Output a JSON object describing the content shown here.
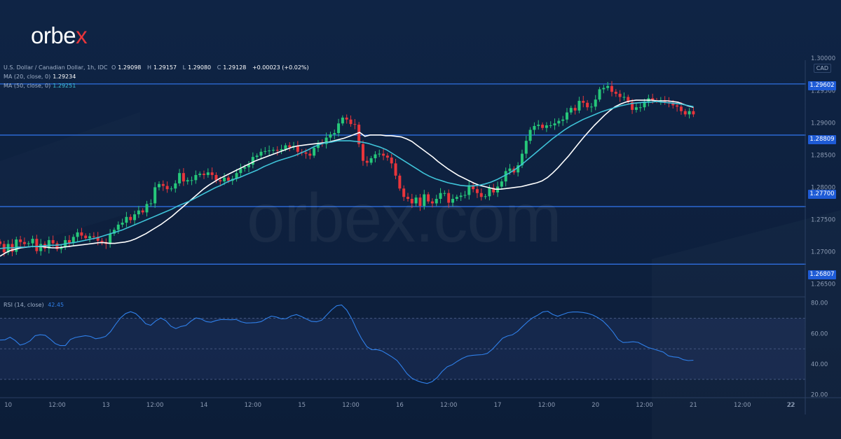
{
  "brand": {
    "logo": "orbex",
    "watermark": "orbex.com"
  },
  "legend": {
    "symbol": "U.S. Dollar / Canadian Dollar, 1h, IDC",
    "ohlc": [
      {
        "label": "O",
        "value": "1.29098"
      },
      {
        "label": "H",
        "value": "1.29157"
      },
      {
        "label": "L",
        "value": "1.29080"
      },
      {
        "label": "C",
        "value": "1.29128"
      }
    ],
    "change": "+0.00023 (+0.02%)",
    "ma20": {
      "label": "MA (20, close, 0)",
      "value": "1.29234"
    },
    "ma50": {
      "label": "MA (50, close, 0)",
      "value": "1.29251"
    },
    "rsi": {
      "label": "RSI (14, close)",
      "value": "42.45"
    }
  },
  "currency": "CAD",
  "colors": {
    "background": "#0f2240",
    "up": "#26c77a",
    "down": "#e8353b",
    "ma20": "#ffffff",
    "ma50": "#3fc3d8",
    "rsi": "#2f7fe8",
    "level_line": "#2f6fe0",
    "tag": "#1e5bd6"
  },
  "chart_data": [
    {
      "type": "candlestick",
      "title": "U.S. Dollar / Canadian Dollar, 1h, IDC",
      "ylim": [
        1.263,
        1.2997
      ],
      "y_ticks": [
        "1.30000",
        "1.29500",
        "1.29000",
        "1.28500",
        "1.28000",
        "1.27500",
        "1.27000",
        "1.26500"
      ],
      "x_ticks": [
        {
          "label": "10",
          "index": 2
        },
        {
          "label": "12:00",
          "index": 14
        },
        {
          "label": "13",
          "index": 26
        },
        {
          "label": "12:00",
          "index": 38
        },
        {
          "label": "14",
          "index": 50
        },
        {
          "label": "12:00",
          "index": 62
        },
        {
          "label": "15",
          "index": 74
        },
        {
          "label": "12:00",
          "index": 86
        },
        {
          "label": "16",
          "index": 98
        },
        {
          "label": "12:00",
          "index": 110
        },
        {
          "label": "17",
          "index": 122
        },
        {
          "label": "12:00",
          "index": 134
        },
        {
          "label": "20",
          "index": 146
        },
        {
          "label": "12:00",
          "index": 158
        },
        {
          "label": "21",
          "index": 170
        },
        {
          "label": "12:00",
          "index": 182
        },
        {
          "label": "22",
          "index": 194
        }
      ],
      "levels": [
        "1.29602",
        "1.28809",
        "1.27700",
        "1.26807"
      ],
      "series": [
        {
          "name": "MA (20, close, 0)",
          "values": [
            1.2693,
            1.2698,
            1.2702,
            1.2704,
            1.2706,
            1.2707,
            1.2708,
            1.2708,
            1.2708,
            1.2707,
            1.2706,
            1.2706,
            1.2707,
            1.2708,
            1.2709,
            1.271,
            1.2711,
            1.2712,
            1.2713,
            1.2714,
            1.2714,
            1.2713,
            1.2713,
            1.2714,
            1.2715,
            1.2717,
            1.272,
            1.2724,
            1.2728,
            1.2733,
            1.2738,
            1.2743,
            1.2749,
            1.2755,
            1.2762,
            1.2769,
            1.2776,
            1.2783,
            1.279,
            1.2797,
            1.2803,
            1.2808,
            1.2813,
            1.2817,
            1.2821,
            1.2825,
            1.2829,
            1.2833,
            1.2837,
            1.2841,
            1.2844,
            1.2847,
            1.285,
            1.2853,
            1.2856,
            1.2859,
            1.2862,
            1.2864,
            1.2865,
            1.2866,
            1.2867,
            1.2868,
            1.2869,
            1.287,
            1.2872,
            1.2874,
            1.2876,
            1.2879,
            1.2882,
            1.2885,
            1.2879,
            1.2881,
            1.2881,
            1.2881,
            1.288,
            1.288,
            1.2879,
            1.2878,
            1.2875,
            1.2871,
            1.2865,
            1.2859,
            1.2853,
            1.2847,
            1.284,
            1.2834,
            1.2828,
            1.2823,
            1.2818,
            1.2814,
            1.281,
            1.2806,
            1.2803,
            1.2801,
            1.2799,
            1.2797,
            1.2797,
            1.2798,
            1.2799,
            1.28,
            1.2801,
            1.2803,
            1.2805,
            1.2807,
            1.281,
            1.2815,
            1.2822,
            1.283,
            1.2839,
            1.2848,
            1.2858,
            1.2868,
            1.2878,
            1.2887,
            1.2896,
            1.2904,
            1.2912,
            1.2919,
            1.2925,
            1.2929,
            1.2932,
            1.2934,
            1.2935,
            1.2935,
            1.2935,
            1.2935,
            1.2934,
            1.2934,
            1.2934,
            1.2933,
            1.2932,
            1.2929,
            1.2926,
            1.2924
          ]
        },
        {
          "name": "MA (50, close, 0)",
          "values": [
            1.2705,
            1.2706,
            1.2706,
            1.2707,
            1.2707,
            1.2708,
            1.2708,
            1.2709,
            1.271,
            1.271,
            1.2711,
            1.2713,
            1.2714,
            1.2716,
            1.2718,
            1.272,
            1.2722,
            1.2725,
            1.2728,
            1.2731,
            1.2734,
            1.2738,
            1.2742,
            1.2746,
            1.275,
            1.2754,
            1.2758,
            1.2762,
            1.2766,
            1.2771,
            1.2775,
            1.2779,
            1.2784,
            1.2789,
            1.2794,
            1.2799,
            1.2803,
            1.2808,
            1.2812,
            1.2815,
            1.2819,
            1.2823,
            1.2827,
            1.2832,
            1.2836,
            1.284,
            1.2843,
            1.2846,
            1.2849,
            1.2853,
            1.2857,
            1.2862,
            1.2866,
            1.2869,
            1.287,
            1.2872,
            1.2872,
            1.2872,
            1.2871,
            1.287,
            1.2868,
            1.2865,
            1.2862,
            1.2858,
            1.2852,
            1.2846,
            1.284,
            1.2834,
            1.2828,
            1.2822,
            1.2817,
            1.2813,
            1.281,
            1.2807,
            1.2805,
            1.2803,
            1.2802,
            1.2802,
            1.2803,
            1.2805,
            1.2808,
            1.2812,
            1.2817,
            1.2822,
            1.2828,
            1.2835,
            1.2843,
            1.2851,
            1.2859,
            1.2867,
            1.2875,
            1.2882,
            1.2889,
            1.2895,
            1.29,
            1.2905,
            1.2909,
            1.2913,
            1.2917,
            1.292,
            1.2923,
            1.2926,
            1.2928,
            1.293,
            1.2931,
            1.2932,
            1.2932,
            1.2933,
            1.2932,
            1.2931,
            1.293,
            1.2929,
            1.2927,
            1.2925
          ]
        }
      ],
      "closes": [
        1.2712,
        1.2699,
        1.2712,
        1.27,
        1.2719,
        1.2715,
        1.2712,
        1.2713,
        1.272,
        1.2701,
        1.2712,
        1.2705,
        1.2718,
        1.2713,
        1.2704,
        1.2707,
        1.2718,
        1.2714,
        1.2723,
        1.273,
        1.2725,
        1.2721,
        1.2724,
        1.2723,
        1.2717,
        1.2715,
        1.2712,
        1.2728,
        1.2734,
        1.2742,
        1.2745,
        1.2754,
        1.2749,
        1.2758,
        1.2764,
        1.2761,
        1.2774,
        1.2775,
        1.28,
        1.2805,
        1.2802,
        1.2797,
        1.2798,
        1.2806,
        1.2822,
        1.2809,
        1.2811,
        1.2811,
        1.2819,
        1.2821,
        1.2819,
        1.2823,
        1.2819,
        1.2811,
        1.2809,
        1.2815,
        1.281,
        1.2813,
        1.2822,
        1.2829,
        1.2831,
        1.2835,
        1.2847,
        1.2849,
        1.2855,
        1.2856,
        1.2857,
        1.2858,
        1.2857,
        1.2859,
        1.2865,
        1.2862,
        1.2864,
        1.2855,
        1.2854,
        1.2852,
        1.2849,
        1.2861,
        1.2868,
        1.2867,
        1.2877,
        1.2882,
        1.2884,
        1.2899,
        1.2908,
        1.2905,
        1.2898,
        1.2897,
        1.2867,
        1.2841,
        1.2838,
        1.2845,
        1.2851,
        1.2852,
        1.2849,
        1.2846,
        1.2837,
        1.2818,
        1.2798,
        1.2785,
        1.2782,
        1.2775,
        1.2784,
        1.2771,
        1.2789,
        1.2778,
        1.2775,
        1.2782,
        1.2791,
        1.2791,
        1.2776,
        1.2782,
        1.2785,
        1.2787,
        1.2788,
        1.2803,
        1.2797,
        1.2791,
        1.2785,
        1.2786,
        1.2799,
        1.2792,
        1.2801,
        1.2809,
        1.2825,
        1.2829,
        1.2823,
        1.2834,
        1.2852,
        1.2872,
        1.2889,
        1.2895,
        1.2897,
        1.2892,
        1.2896,
        1.2896,
        1.2899,
        1.2903,
        1.2905,
        1.2916,
        1.2923,
        1.2919,
        1.2934,
        1.2931,
        1.2924,
        1.2925,
        1.2936,
        1.2952,
        1.2954,
        1.2957,
        1.2948,
        1.2945,
        1.294,
        1.294,
        1.2932,
        1.292,
        1.2924,
        1.2924,
        1.2933,
        1.2938,
        1.2935,
        1.2934,
        1.2935,
        1.2932,
        1.2931,
        1.2927,
        1.2925,
        1.2918,
        1.2913,
        1.2918,
        1.2913
      ]
    },
    {
      "type": "line",
      "title": "RSI (14, close)",
      "ylim": [
        18,
        84
      ],
      "y_ticks": [
        "80.00",
        "60.00",
        "40.00",
        "20.00"
      ],
      "bands": [
        30,
        50,
        70
      ],
      "series": [
        {
          "name": "RSI (14, close)",
          "values": [
            55.7,
            55.9,
            57.6,
            55.5,
            52.4,
            53.4,
            55.2,
            58.6,
            59.2,
            58.9,
            56.3,
            53.4,
            52.1,
            52.1,
            56.1,
            57.4,
            58.0,
            58.6,
            58.1,
            56.6,
            57.1,
            58.1,
            61.2,
            66.0,
            70.3,
            73.1,
            74.3,
            73.1,
            70.1,
            66.4,
            65.4,
            68.3,
            70.2,
            68.4,
            64.8,
            63.3,
            64.6,
            65.3,
            68.1,
            70.2,
            69.6,
            67.8,
            67.4,
            68.5,
            69.2,
            69.1,
            69.0,
            69.2,
            67.7,
            66.9,
            67.0,
            67.2,
            67.8,
            69.8,
            71.4,
            70.8,
            69.6,
            69.8,
            71.6,
            72.4,
            71.1,
            69.5,
            67.9,
            67.7,
            68.7,
            72.1,
            75.5,
            78.2,
            78.7,
            75.4,
            69.7,
            62.6,
            56.4,
            51.4,
            49.4,
            49.5,
            48.6,
            46.7,
            44.7,
            42.4,
            38.2,
            33.7,
            30.7,
            29.1,
            28.0,
            27.3,
            28.5,
            31.2,
            35.2,
            38.2,
            39.6,
            41.8,
            43.7,
            45.2,
            45.7,
            46.0,
            46.2,
            47.0,
            49.7,
            53.3,
            56.9,
            58.4,
            59.2,
            61.4,
            64.6,
            67.7,
            70.3,
            72.0,
            74.1,
            74.6,
            72.5,
            71.3,
            72.5,
            73.7,
            74.1,
            74.1,
            73.8,
            73.2,
            72.1,
            70.4,
            68.2,
            64.9,
            61.0,
            56.2,
            54.1,
            54.3,
            54.6,
            54.2,
            52.5,
            50.8,
            49.9,
            48.9,
            47.9,
            45.4,
            44.7,
            44.4,
            42.9,
            42.3,
            42.5
          ]
        }
      ]
    }
  ]
}
